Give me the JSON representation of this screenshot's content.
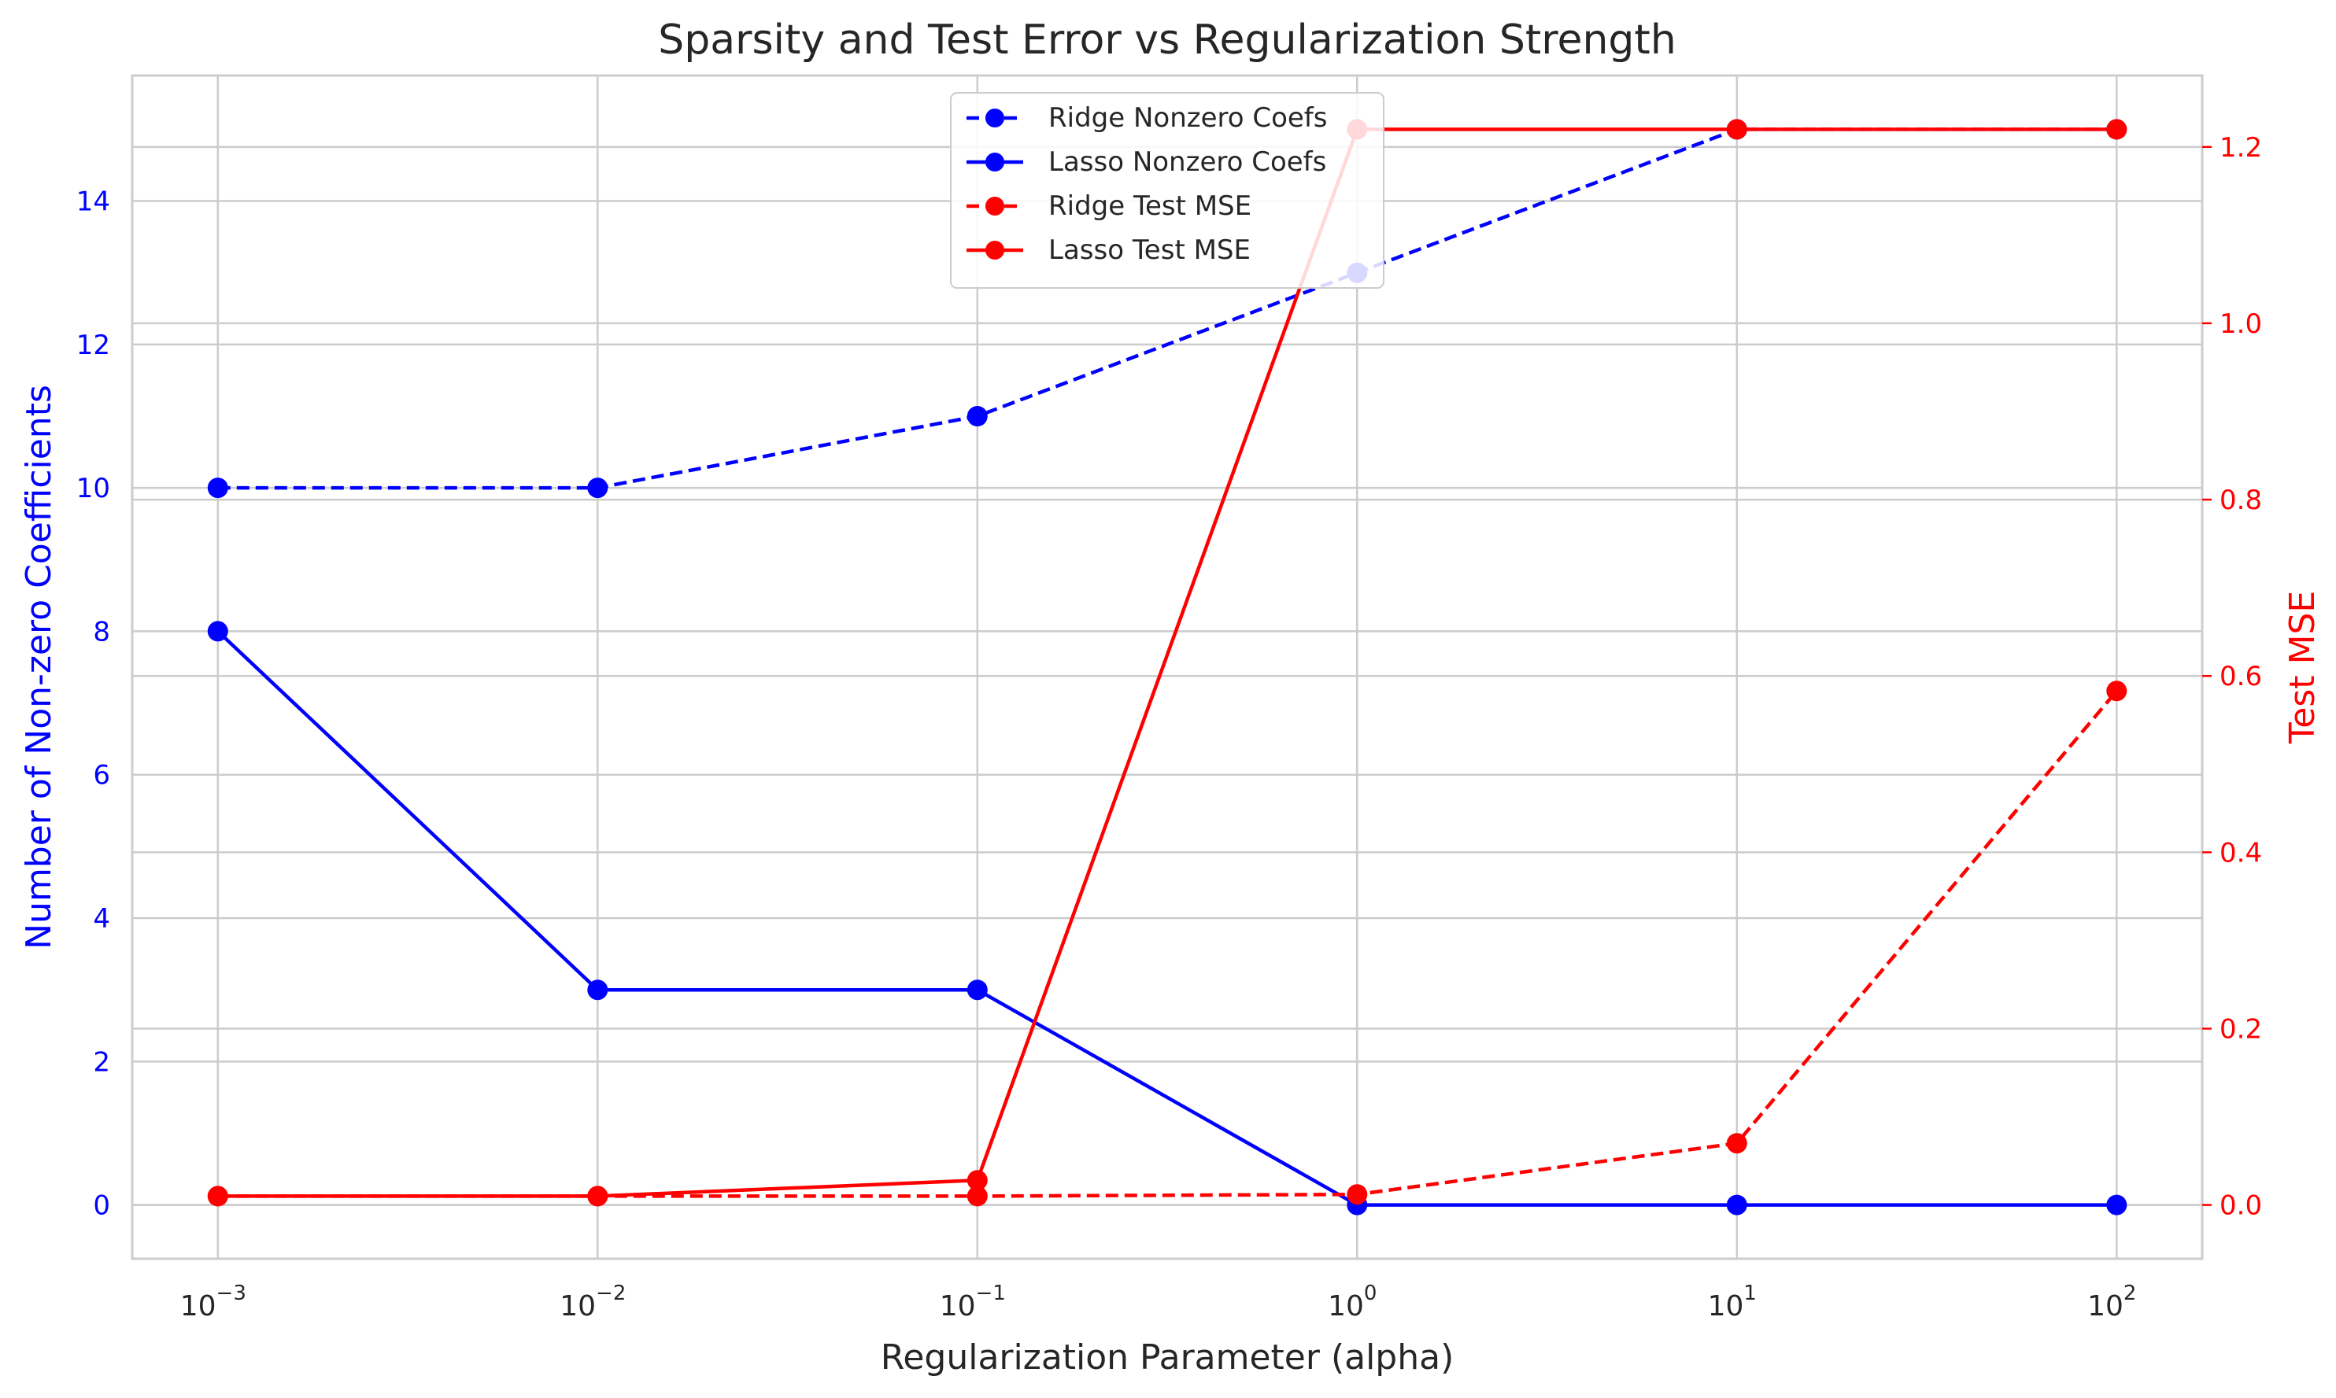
{
  "chart_data": {
    "type": "line",
    "title": "Sparsity and Test Error vs Regularization Strength",
    "xlabel": "Regularization Parameter (alpha)",
    "ylabel_left": "Number of Non-zero Coefficients",
    "ylabel_right": "Test MSE",
    "x_scale": "log",
    "x": [
      0.001,
      0.01,
      0.1,
      1,
      10,
      100
    ],
    "x_ticks": [
      {
        "value": 0.001,
        "base": "10",
        "exp": "−3"
      },
      {
        "value": 0.01,
        "base": "10",
        "exp": "−2"
      },
      {
        "value": 0.1,
        "base": "10",
        "exp": "−1"
      },
      {
        "value": 1,
        "base": "10",
        "exp": "0"
      },
      {
        "value": 10,
        "base": "10",
        "exp": "1"
      },
      {
        "value": 100,
        "base": "10",
        "exp": "2"
      }
    ],
    "xlim": [
      0.000595,
      168
    ],
    "ylim_left": [
      -0.75,
      15.75
    ],
    "yticks_left": [
      0,
      2,
      4,
      6,
      8,
      10,
      12,
      14
    ],
    "ylim_right": [
      -0.061,
      1.281
    ],
    "yticks_right": [
      0.0,
      0.2,
      0.4,
      0.6,
      0.8,
      1.0,
      1.2
    ],
    "yticks_right_labels": [
      "0.0",
      "0.2",
      "0.4",
      "0.6",
      "0.8",
      "1.0",
      "1.2"
    ],
    "grid": true,
    "legend_position": "top-center",
    "colors": {
      "blue": "#0000ff",
      "red": "#ff0000",
      "grid": "#cccccc",
      "text": "#262626",
      "spine": "#cccccc"
    },
    "series": [
      {
        "name": "Ridge Nonzero Coefs",
        "axis": "left",
        "color": "#0000ff",
        "linestyle": "dashed",
        "values": [
          10,
          10,
          11,
          13,
          15,
          15
        ]
      },
      {
        "name": "Lasso Nonzero Coefs",
        "axis": "left",
        "color": "#0000ff",
        "linestyle": "solid",
        "values": [
          8,
          3,
          3,
          0,
          0,
          0
        ]
      },
      {
        "name": "Ridge Test MSE",
        "axis": "right",
        "color": "#ff0000",
        "linestyle": "dashed",
        "values": [
          0.01,
          0.01,
          0.01,
          0.012,
          0.07,
          0.583
        ]
      },
      {
        "name": "Lasso Test MSE",
        "axis": "right",
        "color": "#ff0000",
        "linestyle": "solid",
        "values": [
          0.01,
          0.01,
          0.028,
          1.22,
          1.22,
          1.22
        ]
      }
    ]
  }
}
